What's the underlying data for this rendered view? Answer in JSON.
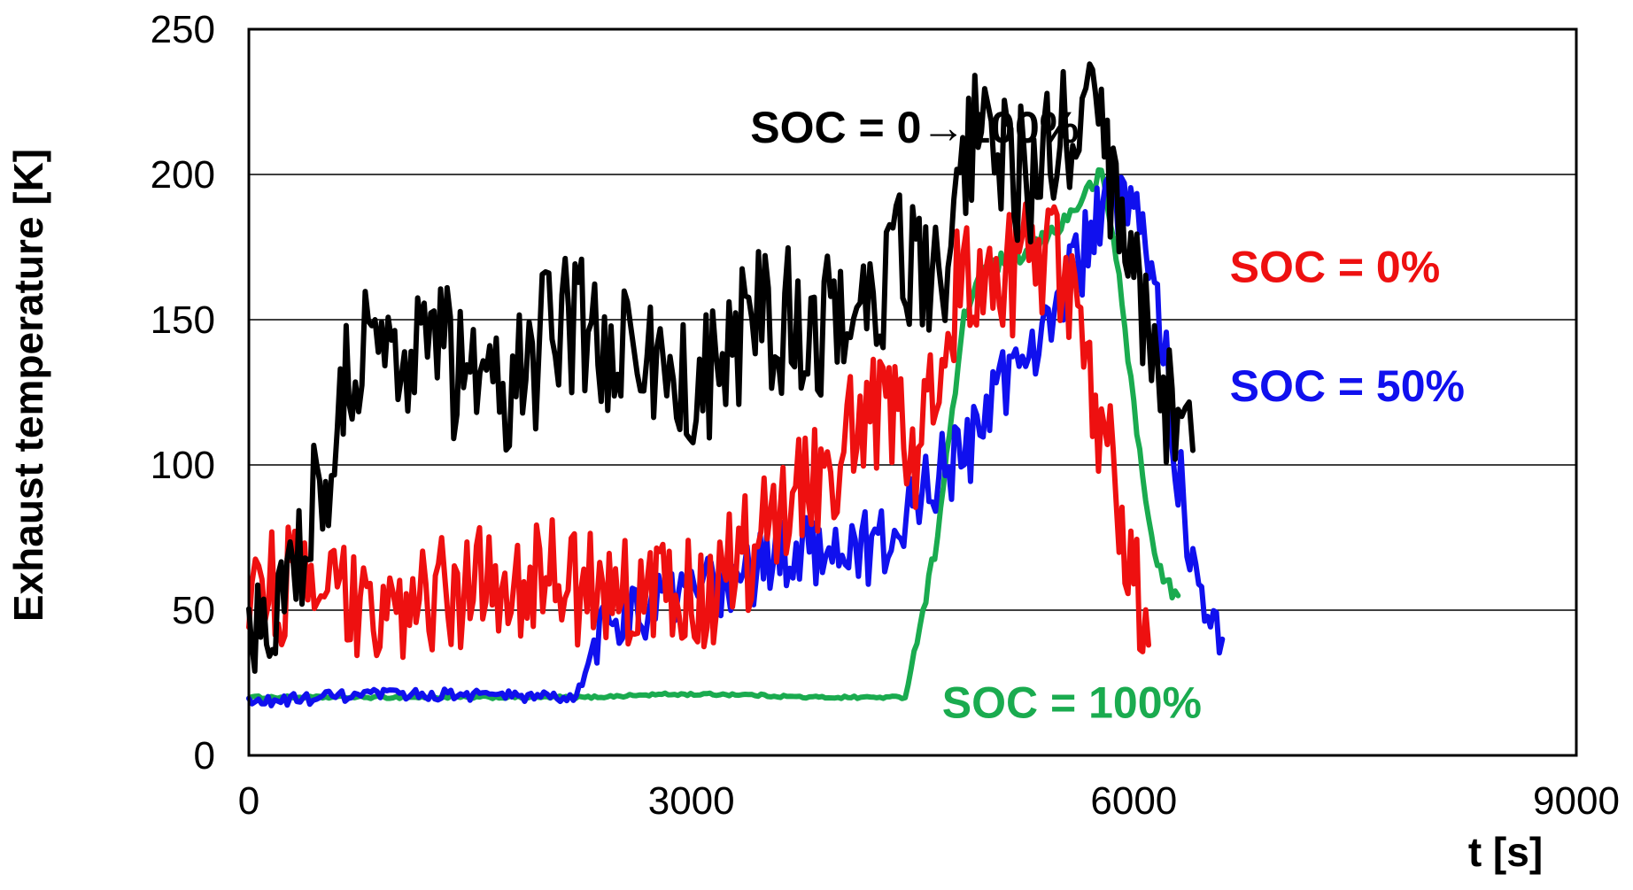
{
  "chart_data": {
    "type": "line",
    "title": "",
    "xlabel": "t [s]",
    "ylabel": "Exhaust temperature [K]",
    "xlim": [
      0,
      9000
    ],
    "ylim": [
      0,
      250
    ],
    "xticks": [
      0,
      3000,
      6000,
      9000
    ],
    "yticks": [
      0,
      50,
      100,
      150,
      200,
      250
    ],
    "xtick_labels": [
      "0",
      "3000",
      "6000",
      "9000"
    ],
    "ytick_labels": [
      "0",
      "50",
      "100",
      "150",
      "200",
      "250"
    ],
    "grid": "horizontal",
    "series": [
      {
        "name": "SOC = 100%",
        "label": "SOC = 100%",
        "color": "#1aab4f",
        "points": [
          [
            0,
            20
          ],
          [
            500,
            20
          ],
          [
            1000,
            20
          ],
          [
            1500,
            20
          ],
          [
            2000,
            20
          ],
          [
            2300,
            20
          ],
          [
            2800,
            21
          ],
          [
            3300,
            21
          ],
          [
            3800,
            20
          ],
          [
            4300,
            20
          ],
          [
            4450,
            20
          ],
          [
            4550,
            45
          ],
          [
            4650,
            70
          ],
          [
            4750,
            110
          ],
          [
            4850,
            150
          ],
          [
            4950,
            165
          ],
          [
            5100,
            170
          ],
          [
            5250,
            172
          ],
          [
            5400,
            178
          ],
          [
            5550,
            185
          ],
          [
            5700,
            195
          ],
          [
            5780,
            200
          ],
          [
            5820,
            190
          ],
          [
            5900,
            165
          ],
          [
            6000,
            120
          ],
          [
            6100,
            80
          ],
          [
            6200,
            60
          ],
          [
            6300,
            55
          ]
        ]
      },
      {
        "name": "SOC = 50%",
        "label": "SOC = 50%",
        "color": "#1010ee",
        "points": [
          [
            0,
            18
          ],
          [
            500,
            20
          ],
          [
            1000,
            21
          ],
          [
            1500,
            21
          ],
          [
            2000,
            20
          ],
          [
            2200,
            20
          ],
          [
            2300,
            28
          ],
          [
            2400,
            45
          ],
          [
            2600,
            50
          ],
          [
            2800,
            52
          ],
          [
            3000,
            55
          ],
          [
            3200,
            58
          ],
          [
            3400,
            62
          ],
          [
            3600,
            68
          ],
          [
            3800,
            72
          ],
          [
            4000,
            75
          ],
          [
            4200,
            70
          ],
          [
            4400,
            72
          ],
          [
            4500,
            90
          ],
          [
            4700,
            98
          ],
          [
            4850,
            102
          ],
          [
            5000,
            120
          ],
          [
            5200,
            135
          ],
          [
            5400,
            150
          ],
          [
            5500,
            158
          ],
          [
            5650,
            172
          ],
          [
            5750,
            182
          ],
          [
            5850,
            190
          ],
          [
            6000,
            185
          ],
          [
            6100,
            170
          ],
          [
            6200,
            140
          ],
          [
            6300,
            100
          ],
          [
            6400,
            70
          ],
          [
            6500,
            50
          ],
          [
            6600,
            40
          ]
        ]
      },
      {
        "name": "SOC = 0%",
        "label": "SOC = 0%",
        "color": "#ee1010",
        "points": [
          [
            0,
            55
          ],
          [
            200,
            60
          ],
          [
            400,
            55
          ],
          [
            600,
            55
          ],
          [
            800,
            50
          ],
          [
            1000,
            45
          ],
          [
            1200,
            55
          ],
          [
            1500,
            58
          ],
          [
            1800,
            62
          ],
          [
            2100,
            60
          ],
          [
            2400,
            58
          ],
          [
            2700,
            55
          ],
          [
            3000,
            55
          ],
          [
            3300,
            65
          ],
          [
            3600,
            88
          ],
          [
            3900,
            100
          ],
          [
            4100,
            110
          ],
          [
            4300,
            118
          ],
          [
            4400,
            120
          ],
          [
            4500,
            100
          ],
          [
            4600,
            130
          ],
          [
            4700,
            145
          ],
          [
            4800,
            160
          ],
          [
            5000,
            162
          ],
          [
            5200,
            165
          ],
          [
            5400,
            175
          ],
          [
            5500,
            168
          ],
          [
            5600,
            150
          ],
          [
            5700,
            130
          ],
          [
            5800,
            110
          ],
          [
            5900,
            90
          ],
          [
            6000,
            65
          ],
          [
            6100,
            38
          ]
        ]
      },
      {
        "name": "SOC = 0→100%",
        "label": "SOC = 0→100%",
        "color": "#000000",
        "points": [
          [
            0,
            38
          ],
          [
            100,
            52
          ],
          [
            200,
            60
          ],
          [
            300,
            68
          ],
          [
            400,
            75
          ],
          [
            500,
            95
          ],
          [
            600,
            120
          ],
          [
            700,
            135
          ],
          [
            900,
            140
          ],
          [
            1100,
            142
          ],
          [
            1300,
            140
          ],
          [
            1500,
            128
          ],
          [
            1700,
            118
          ],
          [
            1900,
            135
          ],
          [
            2100,
            150
          ],
          [
            2300,
            145
          ],
          [
            2500,
            140
          ],
          [
            2700,
            135
          ],
          [
            2900,
            128
          ],
          [
            3100,
            130
          ],
          [
            3300,
            140
          ],
          [
            3500,
            150
          ],
          [
            3700,
            150
          ],
          [
            3900,
            150
          ],
          [
            4100,
            158
          ],
          [
            4300,
            165
          ],
          [
            4500,
            170
          ],
          [
            4700,
            172
          ],
          [
            4800,
            190
          ],
          [
            4900,
            212
          ],
          [
            5100,
            205
          ],
          [
            5300,
            200
          ],
          [
            5500,
            208
          ],
          [
            5650,
            218
          ],
          [
            5700,
            222
          ],
          [
            5800,
            200
          ],
          [
            5900,
            180
          ],
          [
            6000,
            160
          ],
          [
            6100,
            150
          ],
          [
            6200,
            130
          ],
          [
            6300,
            110
          ],
          [
            6350,
            100
          ],
          [
            6400,
            105
          ]
        ]
      }
    ],
    "annotations": [
      {
        "text": "SOC = 0→100%",
        "series": "SOC = 0→100%",
        "x": 3400,
        "y": 211
      },
      {
        "text": "SOC = 0%",
        "series": "SOC = 0%",
        "x": 6650,
        "y": 163
      },
      {
        "text": "SOC = 50%",
        "series": "SOC = 50%",
        "x": 6650,
        "y": 122
      },
      {
        "text": "SOC = 100%",
        "series": "SOC = 100%",
        "x": 4700,
        "y": 13
      }
    ]
  }
}
